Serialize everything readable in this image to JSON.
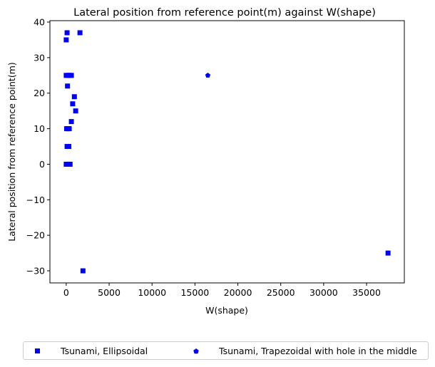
{
  "chart_data": {
    "type": "scatter",
    "title": "Lateral position from reference point(m) against W(shape)",
    "xlabel": "W(shape)",
    "ylabel": "Lateral position from reference point(m)",
    "xlim": [
      -1900,
      39400
    ],
    "ylim": [
      -33.4,
      40.4
    ],
    "xticks": [
      0,
      5000,
      10000,
      15000,
      20000,
      25000,
      30000,
      35000
    ],
    "xtick_labels": [
      "0",
      "5000",
      "10000",
      "15000",
      "20000",
      "25000",
      "30000",
      "35000"
    ],
    "yticks": [
      -30,
      -20,
      -10,
      0,
      10,
      20,
      30,
      40
    ],
    "ytick_labels": [
      "−30",
      "−20",
      "−10",
      "0",
      "10",
      "20",
      "30",
      "40"
    ],
    "grid": false,
    "legend_position": "bottom-center-outside",
    "series": [
      {
        "name": "Tsunami, Ellipsoidal",
        "marker": "square",
        "color": "#0000ff",
        "points": [
          {
            "x": 100,
            "y": 37
          },
          {
            "x": 1600,
            "y": 37
          },
          {
            "x": 0,
            "y": 35
          },
          {
            "x": 0,
            "y": 25
          },
          {
            "x": 200,
            "y": 25
          },
          {
            "x": 400,
            "y": 25
          },
          {
            "x": 600,
            "y": 25
          },
          {
            "x": 150,
            "y": 22
          },
          {
            "x": 950,
            "y": 19
          },
          {
            "x": 750,
            "y": 17
          },
          {
            "x": 1100,
            "y": 15
          },
          {
            "x": 600,
            "y": 12
          },
          {
            "x": 50,
            "y": 10
          },
          {
            "x": 200,
            "y": 10
          },
          {
            "x": 350,
            "y": 10
          },
          {
            "x": 100,
            "y": 5
          },
          {
            "x": 300,
            "y": 5
          },
          {
            "x": 0,
            "y": 0
          },
          {
            "x": 250,
            "y": 0
          },
          {
            "x": 450,
            "y": 0
          },
          {
            "x": 37500,
            "y": -25
          },
          {
            "x": 1950,
            "y": -30
          }
        ]
      },
      {
        "name": "Tsunami, Trapezoidal with hole in the middle",
        "marker": "pentagon",
        "color": "#0000ff",
        "points": [
          {
            "x": 16500,
            "y": 25
          }
        ]
      }
    ]
  }
}
